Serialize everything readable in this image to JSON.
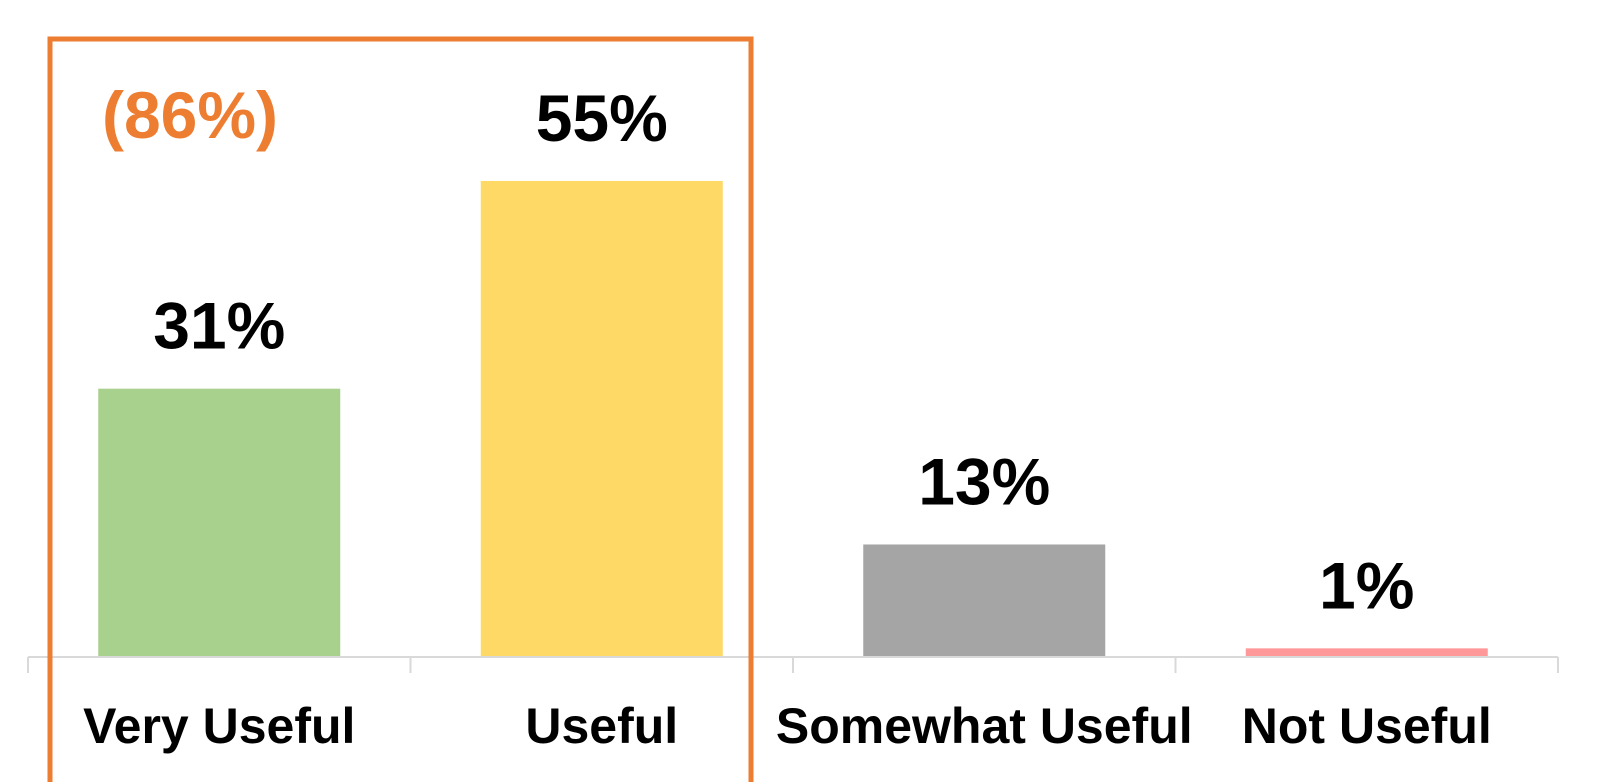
{
  "chart_data": {
    "type": "bar",
    "categories": [
      "Very Useful",
      "Useful",
      "Somewhat Useful",
      "Not Useful"
    ],
    "values": [
      31,
      55,
      13,
      1
    ],
    "value_labels": [
      "31%",
      "55%",
      "13%",
      "1%"
    ],
    "colors": [
      "#A9D18E",
      "#FFD966",
      "#A5A5A5",
      "#FF9999"
    ],
    "ylim": [
      0,
      58
    ],
    "grid": false,
    "legend": "none",
    "highlight": {
      "label": "(86%)",
      "categories": [
        "Very Useful",
        "Useful"
      ],
      "color": "#ED7D31"
    },
    "label_color": "#000000",
    "axis_color": "#D9D9D9"
  }
}
